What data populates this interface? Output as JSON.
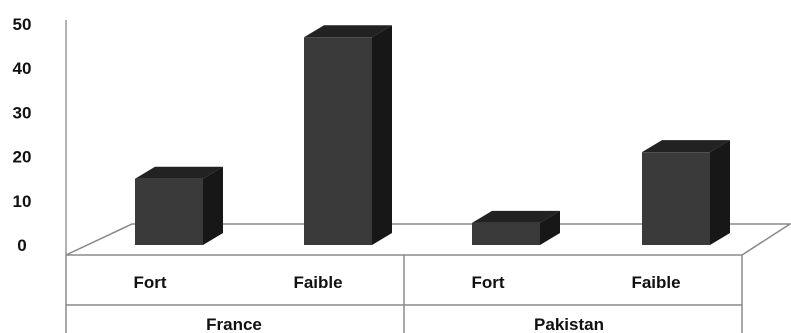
{
  "chart_data": {
    "type": "bar",
    "title": "",
    "xlabel": "",
    "ylabel": "",
    "ylim": [
      0,
      50
    ],
    "yticks": [
      "0",
      "10",
      "20",
      "30",
      "40",
      "50"
    ],
    "groups": [
      {
        "label": "France",
        "categories": [
          "Fort",
          "Faible"
        ],
        "values": [
          15,
          47
        ]
      },
      {
        "label": "Pakistan",
        "categories": [
          "Fort",
          "Faible"
        ],
        "values": [
          5,
          21
        ]
      }
    ],
    "grid": false,
    "legend": "none",
    "colors": {
      "bar_front": "#3a3a3a",
      "bar_top": "#222222",
      "bar_side": "#171717"
    }
  }
}
